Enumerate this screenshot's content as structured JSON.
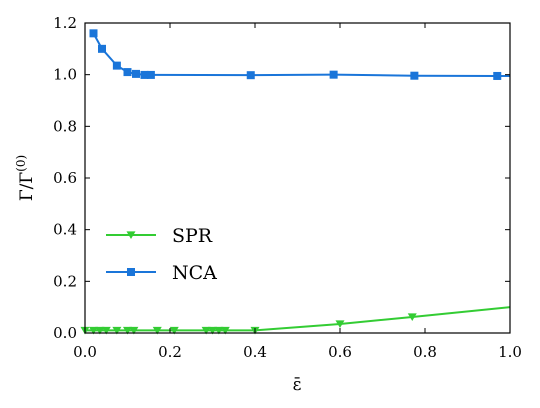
{
  "chart_data": {
    "type": "line",
    "title": "",
    "xlabel": "ε̄",
    "ylabel": "Γ/Γ",
    "ylabel_superscript": "(0)",
    "xlim": [
      0.0,
      1.0
    ],
    "ylim": [
      0.0,
      1.2
    ],
    "x_ticks": [
      "0.0",
      "0.2",
      "0.4",
      "0.6",
      "0.8",
      "1.0"
    ],
    "y_ticks": [
      "0.0",
      "0.2",
      "0.4",
      "0.6",
      "0.8",
      "1.0",
      "1.2"
    ],
    "grid": false,
    "legend_position": "center-left",
    "series": [
      {
        "name": "SPR",
        "color": "#33cc33",
        "marker": "triangle-down",
        "x": [
          0.0,
          0.02,
          0.035,
          0.05,
          0.075,
          0.1,
          0.115,
          0.17,
          0.21,
          0.285,
          0.3,
          0.315,
          0.33,
          0.4,
          0.6,
          0.77,
          1.0
        ],
        "y": [
          0.01,
          0.01,
          0.01,
          0.01,
          0.01,
          0.01,
          0.01,
          0.01,
          0.01,
          0.01,
          0.01,
          0.01,
          0.01,
          0.01,
          0.035,
          0.062,
          0.1
        ],
        "markers_at": [
          0,
          1,
          2,
          3,
          4,
          5,
          6,
          7,
          8,
          9,
          10,
          11,
          12,
          13,
          14,
          15
        ]
      },
      {
        "name": "NCA",
        "color": "#1a75d9",
        "marker": "square",
        "x": [
          0.02,
          0.04,
          0.075,
          0.1,
          0.12,
          0.14,
          0.155,
          0.39,
          0.585,
          0.775,
          0.97,
          1.0
        ],
        "y": [
          1.16,
          1.1,
          1.035,
          1.01,
          1.003,
          0.999,
          0.999,
          0.998,
          1.0,
          0.996,
          0.995,
          0.995
        ],
        "markers_at": [
          0,
          1,
          2,
          3,
          4,
          5,
          6,
          7,
          8,
          9,
          10
        ]
      }
    ]
  }
}
